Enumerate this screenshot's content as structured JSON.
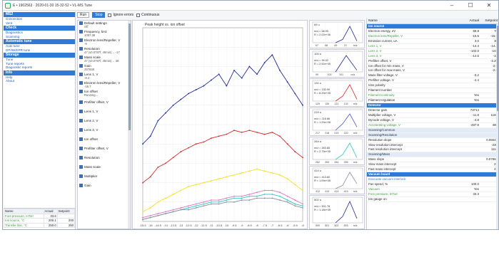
{
  "window": {
    "title": "E • 1902563 · 2020-01-30 15-32-52 • VL-MS Tune",
    "min": "–",
    "max": "☐",
    "close": "✕"
  },
  "left": {
    "sections": [
      {
        "title": "MS2",
        "links": [
          "Connection",
          "Vent"
        ]
      },
      {
        "title": "Check",
        "links": [
          "Diagnostics",
          "Scanning"
        ]
      },
      {
        "title": "Automatic tune",
        "links": [
          "Auto tune",
          "DP/IW/EPR tune"
        ]
      },
      {
        "title": "Storage",
        "links": [
          "Tune",
          "Tune reports",
          "Diagnostic reports"
        ]
      },
      {
        "title": "Info",
        "links": [
          "Help",
          "About"
        ]
      }
    ],
    "table": {
      "headers": [
        "Name",
        "Actual",
        "Setpoint"
      ],
      "rows": [
        [
          "Fore pressure, mTorr",
          "33.6",
          ""
        ],
        [
          "Ion source, °C",
          "200.1",
          "200"
        ],
        [
          "Transfer line, °C",
          "250.0",
          "250"
        ]
      ]
    }
  },
  "toolbar": {
    "run": "Run",
    "stop": "Stop",
    "ignore": "Ignore errors",
    "continuous": "Continuous"
  },
  "params": [
    {
      "label": "Default settings",
      "value": "Off"
    },
    {
      "label": "Frequency, kHz",
      "value": "1087.38"
    },
    {
      "label": "Electron lens/Repeller, V",
      "value": "-9"
    },
    {
      "label": "Resolution",
      "value": "47 (v0.0787f, 40min)→ -17"
    },
    {
      "label": "Mass scale",
      "value": "47 (v0.0787f, 40min)→ 28"
    },
    {
      "label": "Gain",
      "value": "257848"
    },
    {
      "label": "Lens 1, V",
      "value": "-9.4"
    },
    {
      "label": "Electron lens/Repeller, V",
      "value": "-15.7"
    },
    {
      "label": "Ion offset",
      "value": "Running..."
    },
    {
      "label": "Prefilter offset, V",
      "value": ""
    },
    {
      "label": "Lens 1, V",
      "value": ""
    },
    {
      "label": "Lens 2, V",
      "value": ""
    },
    {
      "label": "Lens 3, V",
      "value": ""
    },
    {
      "label": "Ion offset",
      "value": ""
    },
    {
      "label": "Prefilter offset, V",
      "value": ""
    },
    {
      "label": "Resolution",
      "value": ""
    },
    {
      "label": "Mass scale",
      "value": ""
    },
    {
      "label": "Multiplier",
      "value": ""
    },
    {
      "label": "Gain",
      "value": ""
    }
  ],
  "chart_data": [
    {
      "type": "line",
      "title": "Peak height vs. ion offset",
      "x": [
        -15.5,
        -15,
        -14.5,
        -14,
        -13.5,
        -13,
        -12.5,
        -12,
        -11.5,
        -11,
        -10.5,
        -10,
        -9.5,
        -9,
        -8.5,
        -8,
        -7.5,
        -7,
        -6.5,
        -6,
        -5.5,
        -5
      ],
      "series": [
        {
          "color": "#1f2a9b",
          "values": [
            0.4,
            0.44,
            0.52,
            0.56,
            0.6,
            0.63,
            0.66,
            0.68,
            0.7,
            0.73,
            0.76,
            0.7,
            0.78,
            0.74,
            0.8,
            0.76,
            0.82,
            0.86,
            0.78,
            0.72,
            0.66,
            0.6
          ]
        },
        {
          "color": "#d42a2a",
          "values": [
            0.2,
            0.23,
            0.28,
            0.3,
            0.33,
            0.36,
            0.38,
            0.4,
            0.41,
            0.43,
            0.44,
            0.45,
            0.47,
            0.46,
            0.47,
            0.46,
            0.45,
            0.46,
            0.44,
            0.4,
            0.36,
            0.33
          ]
        },
        {
          "color": "#f2e21a",
          "values": [
            0.05,
            0.07,
            0.1,
            0.12,
            0.14,
            0.16,
            0.18,
            0.19,
            0.2,
            0.21,
            0.22,
            0.23,
            0.24,
            0.25,
            0.26,
            0.27,
            0.26,
            0.25,
            0.24,
            0.22,
            0.19,
            0.16
          ]
        },
        {
          "color": "#e070c8",
          "values": [
            0.02,
            0.03,
            0.04,
            0.05,
            0.06,
            0.07,
            0.08,
            0.09,
            0.1,
            0.11,
            0.11,
            0.12,
            0.13,
            0.13,
            0.14,
            0.15,
            0.16,
            0.16,
            0.15,
            0.13,
            0.11,
            0.09
          ]
        },
        {
          "color": "#2ec6c6",
          "values": [
            0.01,
            0.02,
            0.03,
            0.04,
            0.05,
            0.06,
            0.07,
            0.08,
            0.09,
            0.1,
            0.1,
            0.11,
            0.12,
            0.12,
            0.13,
            0.13,
            0.14,
            0.14,
            0.13,
            0.11,
            0.09,
            0.08
          ]
        },
        {
          "color": "#8a8f9a",
          "values": [
            0.01,
            0.02,
            0.03,
            0.04,
            0.05,
            0.06,
            0.06,
            0.07,
            0.08,
            0.09,
            0.09,
            0.1,
            0.1,
            0.11,
            0.11,
            0.12,
            0.12,
            0.12,
            0.11,
            0.1,
            0.08,
            0.07
          ]
        }
      ]
    },
    {
      "type": "line",
      "title": "69 u",
      "x": [
        67,
        68,
        69,
        70
      ],
      "series": [
        {
          "color": "#1f2a9b",
          "values": [
            0,
            0.2,
            1,
            0.1
          ]
        }
      ],
      "annot": [
        "m/z = 68.95",
        "R = 2.02e+06"
      ],
      "ticks": [
        "67",
        "68",
        "69",
        "70",
        "m/z"
      ]
    },
    {
      "type": "line",
      "title": "100 u",
      "x": [
        99,
        100,
        101
      ],
      "series": [
        {
          "color": "#1f2a9b",
          "values": [
            0,
            1,
            0.1
          ]
        }
      ],
      "annot": [
        "m/z = 99.92",
        "R = 2.92e+05"
      ],
      "ticks": [
        "99",
        "100",
        "101",
        "m/z"
      ]
    },
    {
      "type": "line",
      "title": "131 u",
      "x": [
        129,
        130,
        131,
        132
      ],
      "series": [
        {
          "color": "#d42a2a",
          "values": [
            0,
            0.3,
            1,
            0.1
          ]
        }
      ],
      "annot": [
        "m/z = 130.90",
        "R = 8.29e+05"
      ],
      "ticks": [
        "129",
        "130",
        "131",
        "132",
        "m/z"
      ]
    },
    {
      "type": "line",
      "title": "219 u",
      "x": [
        217,
        218,
        219,
        220
      ],
      "series": [
        {
          "color": "#4a58c8",
          "values": [
            0,
            0.4,
            1,
            0.2
          ]
        }
      ],
      "annot": [
        "m/z = 218.86",
        "R = 1.29e+06"
      ],
      "ticks": [
        "217",
        "218",
        "219",
        "220",
        "m/z"
      ]
    },
    {
      "type": "line",
      "title": "264 u",
      "x": [
        262,
        263,
        264,
        265
      ],
      "series": [
        {
          "color": "#2ec6c6",
          "values": [
            0,
            0.3,
            1,
            0.1
          ]
        }
      ],
      "annot": [
        "m/z = 263.85",
        "R = 2.73e+05"
      ],
      "ticks": [
        "262",
        "263",
        "264",
        "265",
        "m/z"
      ]
    },
    {
      "type": "line",
      "title": "414 u",
      "x": [
        412,
        413,
        414,
        415
      ],
      "series": [
        {
          "color": "#8a8f9a",
          "values": [
            0,
            0.2,
            1,
            0.3
          ]
        }
      ],
      "annot": [
        "m/z = 413.80",
        "R = 1.09e+05"
      ],
      "ticks": [
        "412",
        "413",
        "414",
        "415",
        "m/z"
      ]
    },
    {
      "type": "line",
      "title": "502 u",
      "x": [
        500,
        501,
        502,
        503
      ],
      "series": [
        {
          "color": "#1f2a9b",
          "values": [
            0,
            0.3,
            1,
            0.2
          ]
        }
      ],
      "annot": [
        "m/z = 501.78",
        "R = 1.18e+05"
      ],
      "ticks": [
        "500",
        "501",
        "502",
        "503",
        "m/z"
      ]
    }
  ],
  "right": {
    "headers": [
      "Name",
      "Actual",
      "Setpoint"
    ],
    "rows": [
      {
        "t": "hdr",
        "n": "Ion source"
      },
      {
        "n": "Electron energy, eV",
        "a": "69.8",
        "s": "70"
      },
      {
        "n": "Electron lens/Repeller, V",
        "a": "-15.5",
        "s": "-15.5",
        "g": 1
      },
      {
        "n": "Emission current, uA",
        "a": "3.0",
        "s": "30"
      },
      {
        "n": "Lens 1, V",
        "a": "-14.4",
        "s": "-14.4",
        "g": 1
      },
      {
        "n": "Lens 2, V",
        "a": "-102.0",
        "s": "-102",
        "g": 1
      },
      {
        "n": "Lens 3, V",
        "a": "-14.5",
        "s": "-15",
        "g": 1
      },
      {
        "n": "Prefilter offset, V",
        "a": "",
        "s": "-2.25"
      },
      {
        "n": "Ion offset for min mass, V",
        "a": "",
        "s": "-2.9"
      },
      {
        "n": "Ion offset for max mass, V",
        "a": "",
        "s": "-2.8"
      },
      {
        "n": "Mass filter voltage, V",
        "a": "-3.2",
        "s": ""
      },
      {
        "n": "Prefilter voltage, V",
        "a": "-4.4",
        "s": ""
      },
      {
        "n": "Ions polarity",
        "a": "",
        "s": "+"
      },
      {
        "n": "Filament number",
        "a": "",
        "s": "1"
      },
      {
        "n": "Filament continuity",
        "a": "Yes",
        "s": "",
        "g": 1
      },
      {
        "n": "Filament regulation",
        "a": "Yes",
        "s": ""
      },
      {
        "t": "hdr",
        "n": "Detector"
      },
      {
        "n": "Detector gain",
        "a": "73714",
        "s": ""
      },
      {
        "n": "Multiplier voltage, V",
        "a": "-11.8",
        "s": "1182"
      },
      {
        "n": "Dynode voltage, V",
        "a": "-4.8",
        "s": ""
      },
      {
        "n": "Accelerating voltage, V",
        "a": "-487.9",
        "s": "480",
        "g": 1
      },
      {
        "t": "hdr2",
        "n": "Scanning/Common"
      },
      {
        "t": "hdr2",
        "n": "Scanning/Resolution"
      },
      {
        "n": "Resolution slope",
        "a": "",
        "s": "0.05641"
      },
      {
        "n": "Slow resolution intercept",
        "a": "",
        "s": "-220"
      },
      {
        "n": "Fast resolution intercept",
        "a": "",
        "s": "1112"
      },
      {
        "t": "hdr2",
        "n": "Scanning/Mass"
      },
      {
        "n": "Mass slope",
        "a": "",
        "s": "0.07962"
      },
      {
        "n": "Slow mass intercept",
        "a": "",
        "s": "21"
      },
      {
        "n": "Fast mass intercept",
        "a": "",
        "s": "41"
      },
      {
        "t": "hdr",
        "n": "Vacuum board"
      },
      {
        "n": "Evacuate vacuum interlock",
        "sub": 1
      },
      {
        "n": "Fan speed, %",
        "a": "100.0",
        "s": ""
      },
      {
        "n": "Vacuum",
        "a": "Yes",
        "s": "",
        "g": 1
      },
      {
        "n": "Fore pressure, mTorr",
        "a": "33.3",
        "s": "",
        "g": 1
      },
      {
        "n": "Ion gauge on",
        "a": "",
        "s": ""
      }
    ]
  }
}
